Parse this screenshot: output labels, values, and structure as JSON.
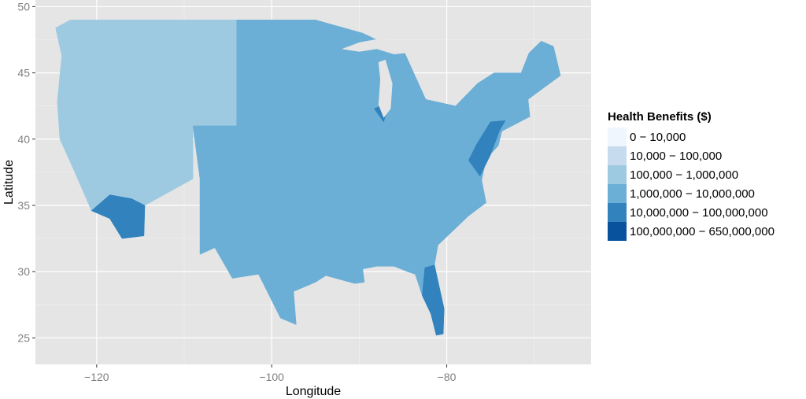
{
  "chart_data": {
    "type": "choropleth",
    "xlabel": "Longitude",
    "ylabel": "Latitude",
    "xlim": [
      -127,
      -63.5
    ],
    "ylim": [
      23,
      50.5
    ],
    "x_ticks": [
      -120,
      -100,
      -80
    ],
    "x_tick_labels": [
      "−120",
      "−100",
      "−80"
    ],
    "y_ticks": [
      25,
      30,
      35,
      40,
      45,
      50
    ],
    "y_tick_labels": [
      "25",
      "30",
      "35",
      "40",
      "45",
      "50"
    ],
    "grid": true,
    "panel_background": "#e5e5e5",
    "legend": {
      "title": "Health Benefits ($)",
      "position": "right",
      "bins": [
        {
          "label": "0 − 10,000",
          "color": "#f0f6fd"
        },
        {
          "label": "10,000 − 100,000",
          "color": "#c7dbef"
        },
        {
          "label": "100,000 − 1,000,000",
          "color": "#9ecae1"
        },
        {
          "label": "1,000,000 − 10,000,000",
          "color": "#6baed6"
        },
        {
          "label": "10,000,000 − 100,000,000",
          "color": "#3182bd"
        },
        {
          "label": "100,000,000 − 650,000,000",
          "color": "#08519c"
        }
      ]
    },
    "regions": [
      {
        "name": "west",
        "bin": 2,
        "outline": [
          [
            -124.7,
            48.4
          ],
          [
            -123,
            49
          ],
          [
            -104,
            49
          ],
          [
            -104,
            41
          ],
          [
            -109,
            41
          ],
          [
            -109,
            37
          ],
          [
            -114.5,
            35
          ],
          [
            -114.6,
            32.7
          ],
          [
            -117.1,
            32.5
          ],
          [
            -118.5,
            34
          ],
          [
            -120.6,
            34.6
          ],
          [
            -122.5,
            37.5
          ],
          [
            -124.2,
            40
          ],
          [
            -124.5,
            42.8
          ],
          [
            -124,
            46.3
          ]
        ]
      },
      {
        "name": "plains",
        "bin": 3,
        "outline": [
          [
            -104,
            49
          ],
          [
            -95,
            49
          ],
          [
            -95,
            43.5
          ],
          [
            -96.5,
            40
          ],
          [
            -96,
            36.5
          ],
          [
            -96.5,
            33
          ],
          [
            -97.5,
            28.5
          ],
          [
            -97.2,
            26
          ],
          [
            -99,
            26.5
          ],
          [
            -101.5,
            29.8
          ],
          [
            -104.5,
            29.5
          ],
          [
            -106.5,
            31.8
          ],
          [
            -108.2,
            31.3
          ],
          [
            -108.2,
            37
          ],
          [
            -109,
            41
          ],
          [
            -104,
            41
          ]
        ]
      },
      {
        "name": "east",
        "bin": 3,
        "outline": [
          [
            -95,
            49
          ],
          [
            -89.6,
            48
          ],
          [
            -84.8,
            46.5
          ],
          [
            -82.4,
            43
          ],
          [
            -79,
            42.5
          ],
          [
            -76.5,
            44.2
          ],
          [
            -74.6,
            45
          ],
          [
            -71.5,
            45
          ],
          [
            -70.6,
            46.5
          ],
          [
            -69.2,
            47.4
          ],
          [
            -67.8,
            47
          ],
          [
            -67,
            44.8
          ],
          [
            -70.7,
            43
          ],
          [
            -70.5,
            41.7
          ],
          [
            -73.7,
            40.6
          ],
          [
            -74.1,
            39.5
          ],
          [
            -75.5,
            38.5
          ],
          [
            -76,
            36.9
          ],
          [
            -75.5,
            35.2
          ],
          [
            -77.5,
            34.2
          ],
          [
            -81,
            32
          ],
          [
            -81.4,
            30.5
          ],
          [
            -80.3,
            27.2
          ],
          [
            -80.4,
            25.3
          ],
          [
            -81.2,
            25.2
          ],
          [
            -81.8,
            26.8
          ],
          [
            -82.8,
            28.2
          ],
          [
            -83.6,
            29.8
          ],
          [
            -84.5,
            30
          ],
          [
            -86,
            30.4
          ],
          [
            -88,
            30.4
          ],
          [
            -89.6,
            30.2
          ],
          [
            -89.4,
            29.2
          ],
          [
            -90.5,
            29.1
          ],
          [
            -93.8,
            29.7
          ],
          [
            -95,
            29.2
          ],
          [
            -97.5,
            28.5
          ],
          [
            -96.5,
            33
          ],
          [
            -96,
            36.5
          ],
          [
            -96.5,
            40
          ],
          [
            -95,
            43.5
          ]
        ]
      },
      {
        "name": "southern-california",
        "bin": 4,
        "outline": [
          [
            -120.6,
            34.6
          ],
          [
            -118.5,
            34
          ],
          [
            -117.1,
            32.5
          ],
          [
            -114.6,
            32.7
          ],
          [
            -114.5,
            35
          ],
          [
            -116,
            35.5
          ],
          [
            -118.5,
            35.8
          ]
        ]
      },
      {
        "name": "northeast-corridor",
        "bin": 4,
        "outline": [
          [
            -77.5,
            38.4
          ],
          [
            -76.2,
            37.2
          ],
          [
            -75,
            38.8
          ],
          [
            -74,
            40.6
          ],
          [
            -73.3,
            41.4
          ],
          [
            -75,
            41.3
          ],
          [
            -76.6,
            39.6
          ]
        ]
      },
      {
        "name": "great-lakes-metro",
        "bin": 4,
        "outline": [
          [
            -88.3,
            42.3
          ],
          [
            -87.2,
            41.3
          ],
          [
            -86.8,
            42.2
          ],
          [
            -87.6,
            42.5
          ]
        ]
      },
      {
        "name": "florida",
        "bin": 4,
        "outline": [
          [
            -81.4,
            30.5
          ],
          [
            -80.3,
            27.2
          ],
          [
            -80.4,
            25.3
          ],
          [
            -81.2,
            25.2
          ],
          [
            -81.8,
            26.8
          ],
          [
            -82.8,
            28.2
          ],
          [
            -82.5,
            30.3
          ]
        ]
      }
    ],
    "water_bodies": [
      {
        "name": "lake-superior",
        "outline": [
          [
            -92,
            46.8
          ],
          [
            -90,
            47.3
          ],
          [
            -87.5,
            47.6
          ],
          [
            -85,
            47
          ],
          [
            -84.6,
            46.5
          ],
          [
            -86,
            46.4
          ],
          [
            -88,
            46.8
          ],
          [
            -90,
            46.6
          ]
        ]
      },
      {
        "name": "lake-michigan",
        "outline": [
          [
            -87.8,
            45.8
          ],
          [
            -87,
            46
          ],
          [
            -86.2,
            44.2
          ],
          [
            -86.4,
            42.3
          ],
          [
            -87.2,
            41.6
          ],
          [
            -87.8,
            42.6
          ],
          [
            -87.6,
            44.5
          ]
        ]
      }
    ]
  }
}
